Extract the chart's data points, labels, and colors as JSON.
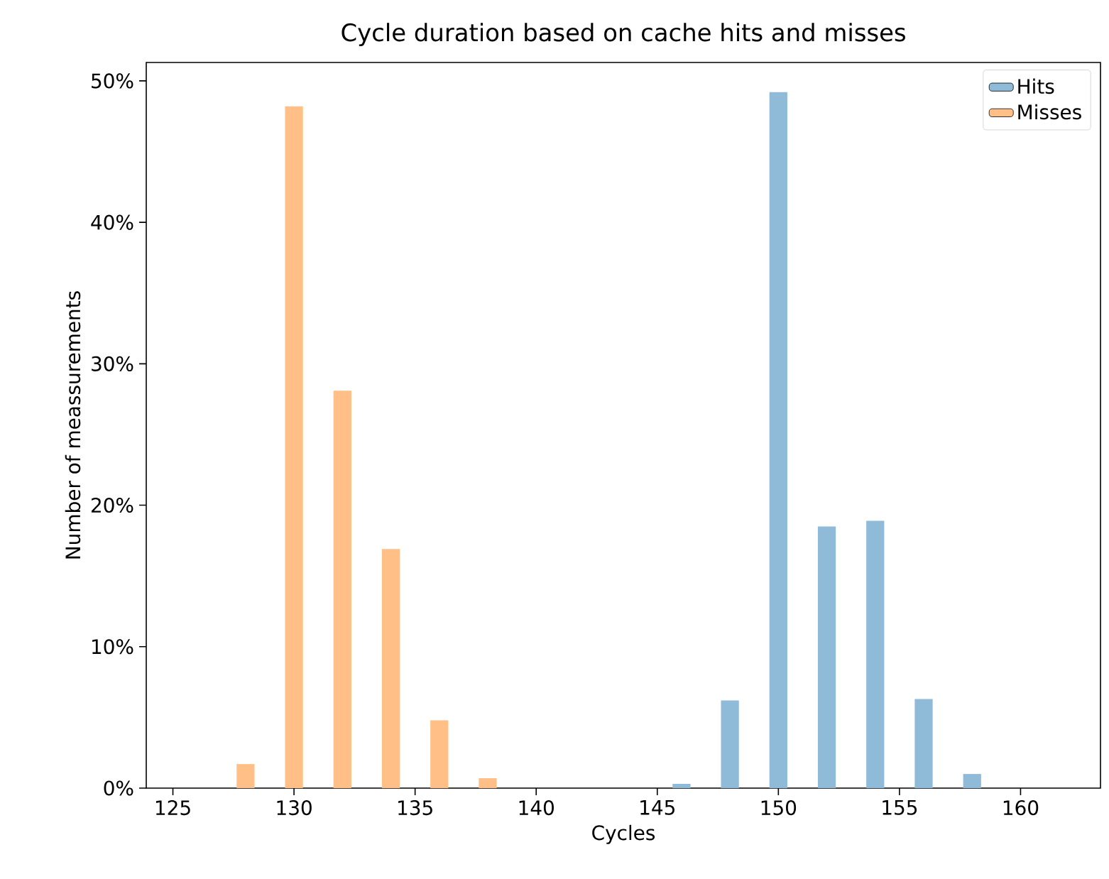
{
  "chart_data": {
    "type": "bar",
    "title": "Cycle duration based on cache hits and misses",
    "xlabel": "Cycles",
    "ylabel": "Number of meassurements",
    "series": [
      {
        "name": "Hits",
        "color": "#8fbbd9",
        "x": [
          146,
          148,
          150,
          152,
          154,
          156,
          158
        ],
        "values": [
          0.3,
          6.2,
          49.2,
          18.5,
          18.9,
          6.3,
          1.0
        ]
      },
      {
        "name": "Misses",
        "color": "#ffbf86",
        "x": [
          128,
          130,
          132,
          134,
          136,
          138
        ],
        "values": [
          1.7,
          48.2,
          28.1,
          16.9,
          4.8,
          0.7
        ]
      }
    ],
    "xlim": [
      123.9,
      163.3
    ],
    "xticks": [
      125,
      130,
      135,
      140,
      145,
      150,
      155,
      160
    ],
    "ylim": [
      0,
      51.3
    ],
    "yticks": [
      {
        "value": 0,
        "label": "0%"
      },
      {
        "value": 10,
        "label": "10%"
      },
      {
        "value": 20,
        "label": "20%"
      },
      {
        "value": 30,
        "label": "30%"
      },
      {
        "value": 40,
        "label": "40%"
      },
      {
        "value": 50,
        "label": "50%"
      }
    ],
    "legend": "top right",
    "grid": false
  }
}
